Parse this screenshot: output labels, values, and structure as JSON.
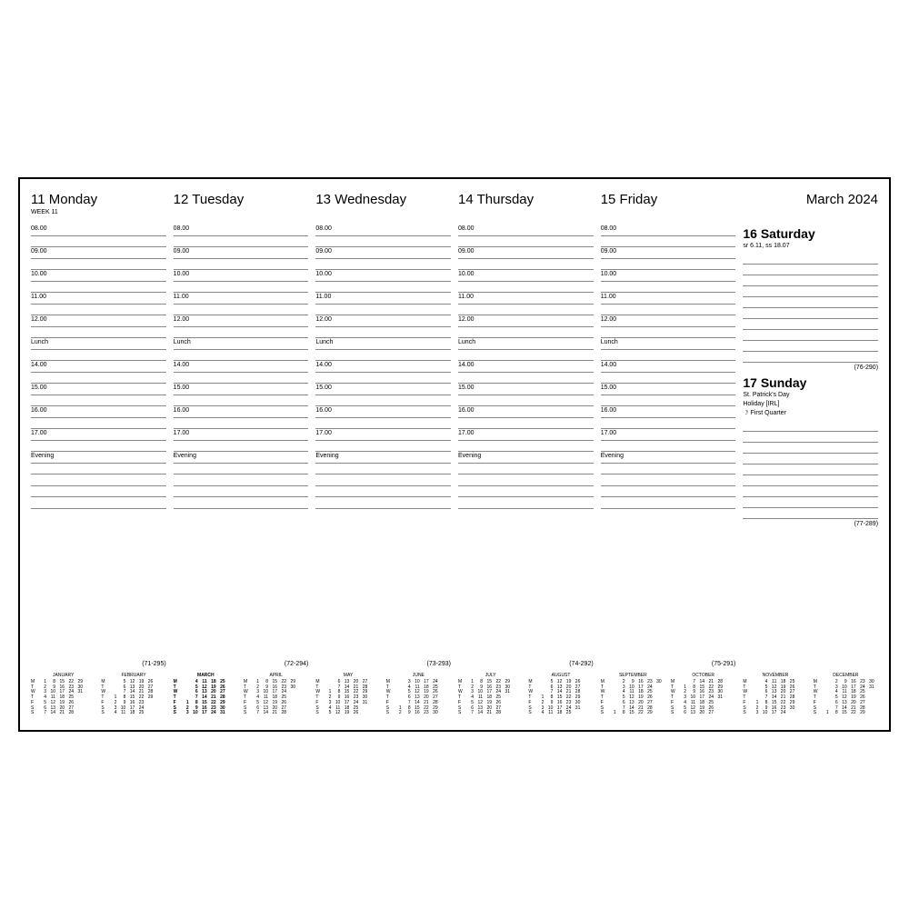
{
  "monthYear": "March 2024",
  "weekLabel": "WEEK 11",
  "timeSlots": [
    "08.00",
    "",
    "09.00",
    "",
    "10.00",
    "",
    "11.00",
    "",
    "12.00",
    "",
    "Lunch",
    "",
    "14.00",
    "",
    "15.00",
    "",
    "16.00",
    "",
    "17.00",
    "",
    "Evening",
    "",
    "",
    "",
    ""
  ],
  "days": [
    {
      "num": "11",
      "name": "Monday",
      "ord": "(71-295)"
    },
    {
      "num": "12",
      "name": "Tuesday",
      "ord": "(72-294)"
    },
    {
      "num": "13",
      "name": "Wednesday",
      "ord": "(73-293)"
    },
    {
      "num": "14",
      "name": "Thursday",
      "ord": "(74-292)"
    },
    {
      "num": "15",
      "name": "Friday",
      "ord": "(75-291)"
    }
  ],
  "saturday": {
    "title": "16 Saturday",
    "sub": "sr 6.11, ss 18.07",
    "ord": "(76-290)"
  },
  "sunday": {
    "title": "17 Sunday",
    "sub1": "St. Patrick's Day",
    "sub2": "Holiday [IRL]",
    "sub3": "☽ First Quarter",
    "ord": "(77-289)"
  },
  "dows": [
    "M",
    "T",
    "W",
    "T",
    "F",
    "S",
    "S"
  ],
  "months": [
    {
      "name": "JANUARY",
      "bold": false,
      "grid": [
        [
          "1",
          "8",
          "15",
          "22",
          "29"
        ],
        [
          "2",
          "9",
          "16",
          "23",
          "30"
        ],
        [
          "3",
          "10",
          "17",
          "24",
          "31"
        ],
        [
          "4",
          "11",
          "18",
          "25",
          ""
        ],
        [
          "5",
          "12",
          "19",
          "26",
          ""
        ],
        [
          "6",
          "13",
          "20",
          "27",
          ""
        ],
        [
          "7",
          "14",
          "21",
          "28",
          ""
        ]
      ]
    },
    {
      "name": "FEBRUARY",
      "bold": false,
      "grid": [
        [
          "",
          "5",
          "12",
          "19",
          "26"
        ],
        [
          "",
          "6",
          "13",
          "20",
          "27"
        ],
        [
          "",
          "7",
          "14",
          "21",
          "28"
        ],
        [
          "1",
          "8",
          "15",
          "22",
          "29"
        ],
        [
          "2",
          "9",
          "16",
          "23",
          ""
        ],
        [
          "3",
          "10",
          "17",
          "24",
          ""
        ],
        [
          "4",
          "11",
          "18",
          "25",
          ""
        ]
      ]
    },
    {
      "name": "MARCH",
      "bold": true,
      "grid": [
        [
          "",
          "4",
          "11",
          "18",
          "25"
        ],
        [
          "",
          "5",
          "12",
          "19",
          "26"
        ],
        [
          "",
          "6",
          "13",
          "20",
          "27"
        ],
        [
          "",
          "7",
          "14",
          "21",
          "28"
        ],
        [
          "1",
          "8",
          "15",
          "22",
          "29"
        ],
        [
          "2",
          "9",
          "16",
          "23",
          "30"
        ],
        [
          "3",
          "10",
          "17",
          "24",
          "31"
        ]
      ]
    },
    {
      "name": "APRIL",
      "bold": false,
      "grid": [
        [
          "1",
          "8",
          "15",
          "22",
          "29"
        ],
        [
          "2",
          "9",
          "16",
          "23",
          "30"
        ],
        [
          "3",
          "10",
          "17",
          "24",
          ""
        ],
        [
          "4",
          "11",
          "18",
          "25",
          ""
        ],
        [
          "5",
          "12",
          "19",
          "26",
          ""
        ],
        [
          "6",
          "13",
          "20",
          "27",
          ""
        ],
        [
          "7",
          "14",
          "21",
          "28",
          ""
        ]
      ]
    },
    {
      "name": "MAY",
      "bold": false,
      "grid": [
        [
          "",
          "6",
          "13",
          "20",
          "27"
        ],
        [
          "",
          "7",
          "14",
          "21",
          "28"
        ],
        [
          "1",
          "8",
          "15",
          "22",
          "29"
        ],
        [
          "2",
          "9",
          "16",
          "23",
          "30"
        ],
        [
          "3",
          "10",
          "17",
          "24",
          "31"
        ],
        [
          "4",
          "11",
          "18",
          "25",
          ""
        ],
        [
          "5",
          "12",
          "19",
          "26",
          ""
        ]
      ]
    },
    {
      "name": "JUNE",
      "bold": false,
      "grid": [
        [
          "",
          "3",
          "10",
          "17",
          "24"
        ],
        [
          "",
          "4",
          "11",
          "18",
          "25"
        ],
        [
          "",
          "5",
          "12",
          "19",
          "26"
        ],
        [
          "",
          "6",
          "13",
          "20",
          "27"
        ],
        [
          "",
          "7",
          "14",
          "21",
          "28"
        ],
        [
          "1",
          "8",
          "15",
          "22",
          "29"
        ],
        [
          "2",
          "9",
          "16",
          "23",
          "30"
        ]
      ]
    },
    {
      "name": "JULY",
      "bold": false,
      "grid": [
        [
          "1",
          "8",
          "15",
          "22",
          "29"
        ],
        [
          "2",
          "9",
          "16",
          "23",
          "30"
        ],
        [
          "3",
          "10",
          "17",
          "24",
          "31"
        ],
        [
          "4",
          "11",
          "18",
          "25",
          ""
        ],
        [
          "5",
          "12",
          "19",
          "26",
          ""
        ],
        [
          "6",
          "13",
          "20",
          "27",
          ""
        ],
        [
          "7",
          "14",
          "21",
          "28",
          ""
        ]
      ]
    },
    {
      "name": "AUGUST",
      "bold": false,
      "grid": [
        [
          "",
          "5",
          "12",
          "19",
          "26"
        ],
        [
          "",
          "6",
          "13",
          "20",
          "27"
        ],
        [
          "",
          "7",
          "14",
          "21",
          "28"
        ],
        [
          "1",
          "8",
          "15",
          "22",
          "29"
        ],
        [
          "2",
          "9",
          "16",
          "23",
          "30"
        ],
        [
          "3",
          "10",
          "17",
          "24",
          "31"
        ],
        [
          "4",
          "11",
          "18",
          "25",
          ""
        ]
      ]
    },
    {
      "name": "SEPTEMBER",
      "bold": false,
      "grid": [
        [
          "",
          "2",
          "9",
          "16",
          "23",
          "30"
        ],
        [
          "",
          "3",
          "10",
          "17",
          "24",
          ""
        ],
        [
          "",
          "4",
          "11",
          "18",
          "25",
          ""
        ],
        [
          "",
          "5",
          "12",
          "19",
          "26",
          ""
        ],
        [
          "",
          "6",
          "13",
          "20",
          "27",
          ""
        ],
        [
          "",
          "7",
          "14",
          "21",
          "28",
          ""
        ],
        [
          "1",
          "8",
          "15",
          "22",
          "29",
          ""
        ]
      ]
    },
    {
      "name": "OCTOBER",
      "bold": false,
      "grid": [
        [
          "",
          "7",
          "14",
          "21",
          "28"
        ],
        [
          "1",
          "8",
          "15",
          "22",
          "29"
        ],
        [
          "2",
          "9",
          "16",
          "23",
          "30"
        ],
        [
          "3",
          "10",
          "17",
          "24",
          "31"
        ],
        [
          "4",
          "11",
          "18",
          "25",
          ""
        ],
        [
          "5",
          "12",
          "19",
          "26",
          ""
        ],
        [
          "6",
          "13",
          "20",
          "27",
          ""
        ]
      ]
    },
    {
      "name": "NOVEMBER",
      "bold": false,
      "grid": [
        [
          "",
          "4",
          "11",
          "18",
          "25"
        ],
        [
          "",
          "5",
          "12",
          "19",
          "26"
        ],
        [
          "",
          "6",
          "13",
          "20",
          "27"
        ],
        [
          "",
          "7",
          "14",
          "21",
          "28"
        ],
        [
          "1",
          "8",
          "15",
          "22",
          "29"
        ],
        [
          "2",
          "9",
          "16",
          "23",
          "30"
        ],
        [
          "3",
          "10",
          "17",
          "24",
          ""
        ]
      ]
    },
    {
      "name": "DECEMBER",
      "bold": false,
      "grid": [
        [
          "",
          "2",
          "9",
          "16",
          "23",
          "30"
        ],
        [
          "",
          "3",
          "10",
          "17",
          "24",
          "31"
        ],
        [
          "",
          "4",
          "11",
          "18",
          "25",
          ""
        ],
        [
          "",
          "5",
          "12",
          "19",
          "26",
          ""
        ],
        [
          "",
          "6",
          "13",
          "20",
          "27",
          ""
        ],
        [
          "",
          "7",
          "14",
          "21",
          "28",
          ""
        ],
        [
          "1",
          "8",
          "15",
          "22",
          "29",
          ""
        ]
      ]
    }
  ],
  "colors": {
    "ink": "#000000",
    "rule": "#888888",
    "bg": "#ffffff"
  }
}
